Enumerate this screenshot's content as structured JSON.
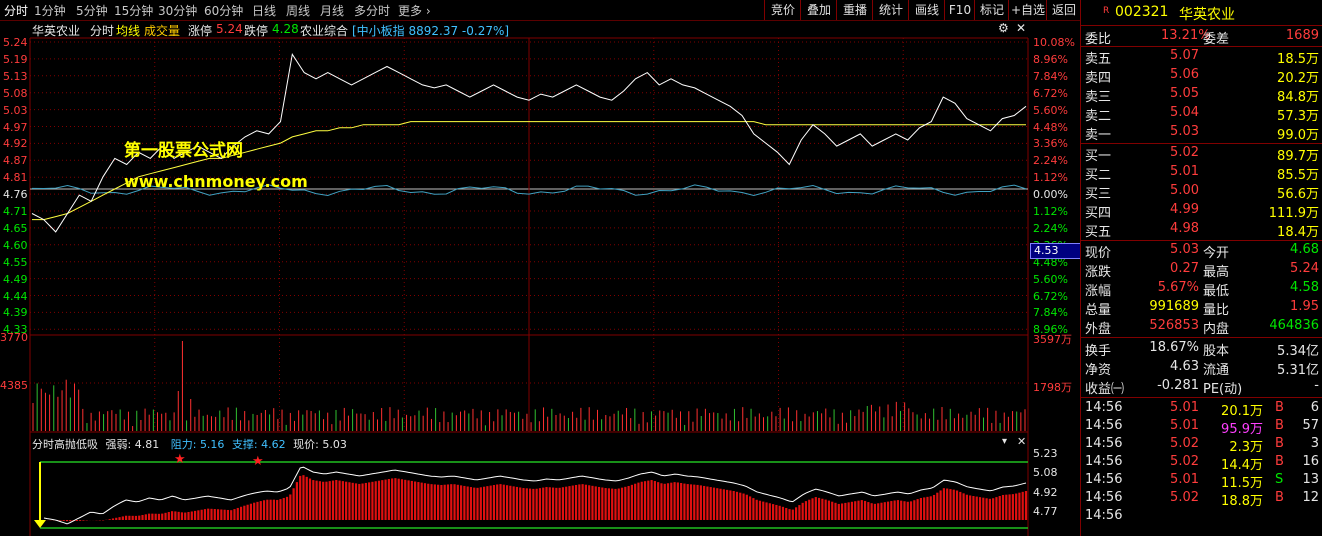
{
  "toolbar": {
    "periods": [
      "分时",
      "1分钟",
      "5分钟",
      "15分钟",
      "30分钟",
      "60分钟",
      "日线",
      "周线",
      "月线",
      "多分时",
      "更多 ›"
    ],
    "buttons": [
      "竞价",
      "叠加",
      "重播",
      "统计",
      "画线",
      "F10",
      "标记",
      "+自选",
      "返回"
    ]
  },
  "info": {
    "name": "华英农业",
    "mode": "分时",
    "avg_label": "均线",
    "vol_label": "成交量",
    "zt_label": "涨停",
    "zt_value": "5.24",
    "dt_label": "跌停",
    "dt_value": "4.28",
    "sector": "农业综合",
    "index_text": "[中小板指 8892.37 -0.27%]"
  },
  "price_axis_left": [
    "5.24",
    "5.19",
    "5.13",
    "5.08",
    "5.03",
    "4.97",
    "4.92",
    "4.87",
    "4.81",
    "4.76",
    "4.71",
    "4.65",
    "4.60",
    "4.55",
    "4.49",
    "4.44",
    "4.39",
    "4.33"
  ],
  "price_axis_right": [
    "10.08%",
    "8.96%",
    "7.84%",
    "6.72%",
    "5.60%",
    "4.48%",
    "3.36%",
    "2.24%",
    "1.12%",
    "0.00%",
    "1.12%",
    "2.24%",
    "3.36%",
    "4.48%",
    "5.60%",
    "6.72%",
    "7.84%",
    "8.96%"
  ],
  "cursor_price": "4.53",
  "volume_axis": {
    "left_top": "3770",
    "left_mid": "4385",
    "right_top": "3597万",
    "right_mid": "1798万"
  },
  "watermark": {
    "line1": "第一股票公式网",
    "line2": "www.chnmoney.com"
  },
  "indicator": {
    "title": "分时高抛低吸",
    "strength_label": "强弱:",
    "strength_value": "4.81",
    "resist_label": "阻力:",
    "resist_value": "5.16",
    "support_label": "支撑:",
    "support_value": "4.62",
    "price_label": "现价:",
    "price_value": "5.03",
    "axis": [
      "5.23",
      "5.08",
      "4.92",
      "4.77"
    ]
  },
  "colors": {
    "up": "#ff3c3c",
    "down": "#00e600",
    "price_line": "#ffffff",
    "avg_line": "#ffff40",
    "index_line": "#40a0c0",
    "grid": "#800000",
    "bar": "#e01010"
  },
  "chart_data": {
    "type": "line",
    "pre_close": 4.76,
    "price_range": [
      4.28,
      5.24
    ],
    "price": [
      4.68,
      4.66,
      4.62,
      4.68,
      4.74,
      4.72,
      4.8,
      4.86,
      4.84,
      4.88,
      4.86,
      4.9,
      4.86,
      4.88,
      4.9,
      4.88,
      4.86,
      4.9,
      4.93,
      4.95,
      4.94,
      4.98,
      5.2,
      5.14,
      5.12,
      5.14,
      5.12,
      5.1,
      5.12,
      5.14,
      5.16,
      5.14,
      5.12,
      5.1,
      5.09,
      5.1,
      5.08,
      5.06,
      5.08,
      5.1,
      5.08,
      5.06,
      5.05,
      5.07,
      5.06,
      5.08,
      5.1,
      5.08,
      5.06,
      5.05,
      5.08,
      5.12,
      5.14,
      5.1,
      5.12,
      5.1,
      5.09,
      5.07,
      5.05,
      5.03,
      5.0,
      4.94,
      4.91,
      4.88,
      4.84,
      4.92,
      4.97,
      4.94,
      4.9,
      4.92,
      4.94,
      4.9,
      4.92,
      4.94,
      4.92,
      4.96,
      4.98,
      5.06,
      5.04,
      4.99,
      4.97,
      4.95,
      4.99,
      5.0,
      5.03
    ],
    "avg": [
      4.66,
      4.66,
      4.67,
      4.68,
      4.7,
      4.72,
      4.74,
      4.76,
      4.78,
      4.8,
      4.81,
      4.82,
      4.83,
      4.84,
      4.85,
      4.86,
      4.86,
      4.87,
      4.88,
      4.89,
      4.9,
      4.91,
      4.93,
      4.94,
      4.95,
      4.95,
      4.96,
      4.96,
      4.97,
      4.97,
      4.97,
      4.97,
      4.98,
      4.98,
      4.98,
      4.98,
      4.98,
      4.98,
      4.98,
      4.98,
      4.98,
      4.98,
      4.98,
      4.98,
      4.98,
      4.98,
      4.98,
      4.98,
      4.98,
      4.98,
      4.98,
      4.98,
      4.98,
      4.98,
      4.98,
      4.98,
      4.98,
      4.98,
      4.98,
      4.98,
      4.98,
      4.98,
      4.97,
      4.97,
      4.97,
      4.97,
      4.97,
      4.97,
      4.97,
      4.97,
      4.97,
      4.97,
      4.97,
      4.97,
      4.97,
      4.97,
      4.97,
      4.97,
      4.97,
      4.97,
      4.97,
      4.97,
      4.97,
      4.97,
      4.97
    ],
    "volume_peak": 3597
  },
  "quote": {
    "code": "002321",
    "name": "华英农业",
    "wb_label": "委比",
    "wb_value": "13.21%",
    "wc_label": "委差",
    "wc_value": "1689",
    "asks": [
      {
        "label": "卖五",
        "price": "5.07",
        "vol": "18.5万"
      },
      {
        "label": "卖四",
        "price": "5.06",
        "vol": "20.2万"
      },
      {
        "label": "卖三",
        "price": "5.05",
        "vol": "84.8万"
      },
      {
        "label": "卖二",
        "price": "5.04",
        "vol": "57.3万"
      },
      {
        "label": "卖一",
        "price": "5.03",
        "vol": "99.0万"
      }
    ],
    "bids": [
      {
        "label": "买一",
        "price": "5.02",
        "vol": "89.7万"
      },
      {
        "label": "买二",
        "price": "5.01",
        "vol": "85.5万"
      },
      {
        "label": "买三",
        "price": "5.00",
        "vol": "56.6万"
      },
      {
        "label": "买四",
        "price": "4.99",
        "vol": "111.9万"
      },
      {
        "label": "买五",
        "price": "4.98",
        "vol": "18.4万"
      }
    ],
    "stats": [
      {
        "l1": "现价",
        "v1": "5.03",
        "c1": "red",
        "l2": "今开",
        "v2": "4.68",
        "c2": "green"
      },
      {
        "l1": "涨跌",
        "v1": "0.27",
        "c1": "red",
        "l2": "最高",
        "v2": "5.24",
        "c2": "red"
      },
      {
        "l1": "涨幅",
        "v1": "5.67%",
        "c1": "red",
        "l2": "最低",
        "v2": "4.58",
        "c2": "green"
      },
      {
        "l1": "总量",
        "v1": "991689",
        "c1": "yellow",
        "l2": "量比",
        "v2": "1.95",
        "c2": "red"
      },
      {
        "l1": "外盘",
        "v1": "526853",
        "c1": "red",
        "l2": "内盘",
        "v2": "464836",
        "c2": "green"
      }
    ],
    "stats2": [
      {
        "l1": "换手",
        "v1": "18.67%",
        "l2": "股本",
        "v2": "5.34亿"
      },
      {
        "l1": "净资",
        "v1": "4.63",
        "l2": "流通",
        "v2": "5.31亿"
      },
      {
        "l1": "收益㈠",
        "v1": "-0.281",
        "l2": "PE(动)",
        "v2": "-"
      }
    ],
    "ticks": [
      {
        "time": "14:56",
        "price": "5.01",
        "vol": "20.1万",
        "side": "B",
        "n": "6",
        "vc": "yellow"
      },
      {
        "time": "14:56",
        "price": "5.01",
        "vol": "95.9万",
        "side": "B",
        "n": "57",
        "vc": "purple"
      },
      {
        "time": "14:56",
        "price": "5.02",
        "vol": "2.3万",
        "side": "B",
        "n": "3",
        "vc": "yellow"
      },
      {
        "time": "14:56",
        "price": "5.02",
        "vol": "14.4万",
        "side": "B",
        "n": "16",
        "vc": "yellow"
      },
      {
        "time": "14:56",
        "price": "5.01",
        "vol": "11.5万",
        "side": "S",
        "n": "13",
        "vc": "yellow"
      },
      {
        "time": "14:56",
        "price": "5.02",
        "vol": "18.8万",
        "side": "B",
        "n": "12",
        "vc": "yellow"
      },
      {
        "time": "14:56",
        "price": "",
        "vol": "",
        "side": "",
        "n": "",
        "vc": "yellow"
      }
    ]
  }
}
